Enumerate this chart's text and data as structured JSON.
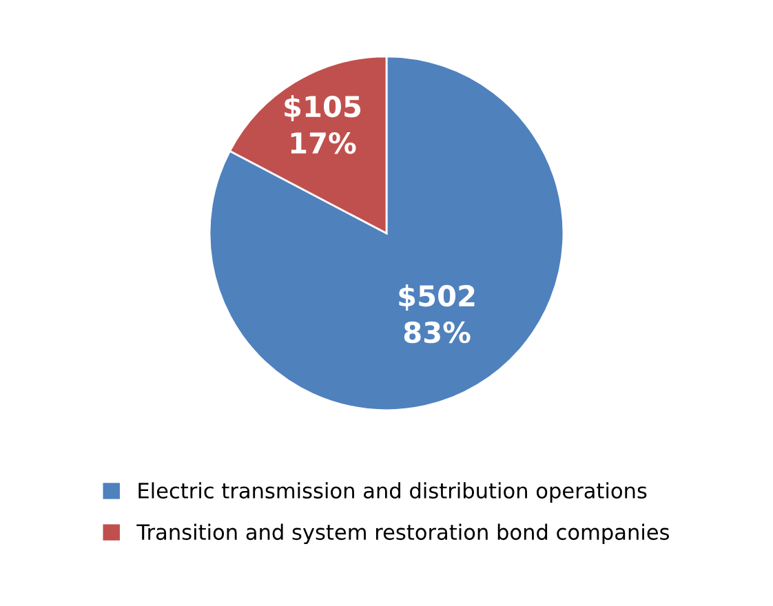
{
  "chart_data": {
    "type": "pie",
    "categories": [
      "Electric transmission and distribution operations",
      "Transition and system restoration bond companies"
    ],
    "values": [
      502,
      105
    ],
    "colors": [
      "#4f81bd",
      "#c0504d"
    ],
    "value_labels": [
      "$502\n83%",
      "$105\n17%"
    ],
    "legend": "bottom"
  }
}
